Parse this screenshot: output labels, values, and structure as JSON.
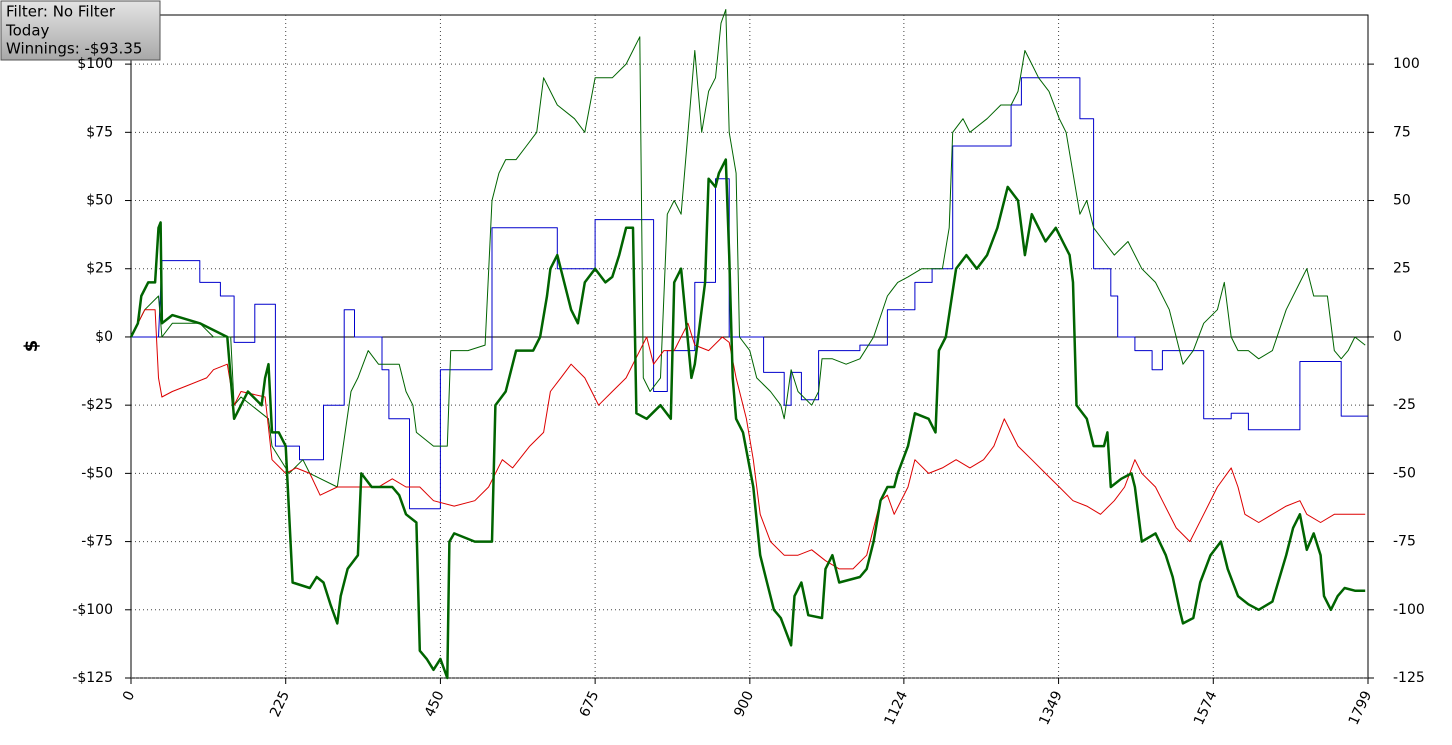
{
  "info": {
    "filter": "Filter: No Filter",
    "period": "Today",
    "winnings": "Winnings: -$93.35"
  },
  "chart_data": {
    "type": "line",
    "ylabel": "$",
    "xlim": [
      0,
      1799
    ],
    "xticks": [
      0,
      225,
      450,
      675,
      900,
      1124,
      1349,
      1574,
      1799
    ],
    "ylim": [
      -125,
      118
    ],
    "yticks": [
      {
        "value": 100,
        "label": "$100"
      },
      {
        "value": 75,
        "label": "$75"
      },
      {
        "value": 50,
        "label": "$50"
      },
      {
        "value": 25,
        "label": "$25"
      },
      {
        "value": 0,
        "label": "$0"
      },
      {
        "value": -25,
        "label": "-$25"
      },
      {
        "value": -50,
        "label": "-$50"
      },
      {
        "value": -75,
        "label": "-$75"
      },
      {
        "value": -100,
        "label": "-$100"
      },
      {
        "value": -125,
        "label": "-$125"
      }
    ],
    "y2lim": [
      -125,
      118
    ],
    "y2ticks": [
      100,
      75,
      50,
      25,
      0,
      -25,
      -50,
      -75,
      -100,
      -125
    ],
    "grid": true,
    "series": [
      {
        "color": "#0000cc",
        "width": 1,
        "x": [
          0,
          40,
          45,
          100,
          100,
          130,
          130,
          150,
          150,
          180,
          180,
          210,
          210,
          245,
          245,
          280,
          280,
          310,
          310,
          325,
          325,
          365,
          365,
          375,
          375,
          405,
          405,
          450,
          450,
          525,
          525,
          620,
          620,
          675,
          675,
          760,
          760,
          780,
          780,
          820,
          820,
          850,
          850,
          870,
          870,
          920,
          920,
          950,
          950,
          960,
          960,
          975,
          975,
          1000,
          1000,
          1060,
          1060,
          1100,
          1100,
          1140,
          1140,
          1165,
          1165,
          1195,
          1195,
          1280,
          1280,
          1295,
          1295,
          1380,
          1380,
          1400,
          1400,
          1425,
          1425,
          1435,
          1435,
          1460,
          1460,
          1485,
          1485,
          1500,
          1500,
          1560,
          1560,
          1600,
          1600,
          1625,
          1625,
          1700,
          1700,
          1760,
          1760,
          1799
        ],
        "values": [
          0,
          0,
          28,
          28,
          20,
          20,
          15,
          15,
          -2,
          -2,
          12,
          12,
          -40,
          -40,
          -45,
          -45,
          -25,
          -25,
          10,
          10,
          0,
          0,
          -12,
          -12,
          -30,
          -30,
          -63,
          -63,
          -12,
          -12,
          40,
          40,
          25,
          25,
          43,
          43,
          -20,
          -20,
          -5,
          -5,
          20,
          20,
          58,
          58,
          0,
          0,
          -13,
          -13,
          -25,
          -25,
          -13,
          -13,
          -23,
          -23,
          -5,
          -5,
          -3,
          -3,
          10,
          10,
          20,
          20,
          25,
          25,
          70,
          70,
          85,
          85,
          95,
          95,
          80,
          80,
          25,
          25,
          15,
          15,
          0,
          0,
          -5,
          -5,
          -12,
          -12,
          -5,
          -5,
          -30,
          -30,
          -28,
          -28,
          -34,
          -34,
          -9,
          -9,
          -29,
          -29
        ]
      },
      {
        "color": "#006400",
        "width": 1,
        "x": [
          0,
          20,
          40,
          45,
          60,
          100,
          120,
          145,
          150,
          160,
          200,
          205,
          230,
          250,
          260,
          300,
          320,
          330,
          345,
          360,
          390,
          400,
          410,
          415,
          440,
          460,
          465,
          490,
          515,
          525,
          535,
          545,
          560,
          575,
          590,
          600,
          620,
          645,
          660,
          675,
          700,
          720,
          740,
          745,
          755,
          770,
          780,
          790,
          800,
          810,
          820,
          830,
          840,
          850,
          858,
          865,
          870,
          880,
          885,
          900,
          910,
          930,
          945,
          950,
          960,
          970,
          990,
          1000,
          1005,
          1020,
          1040,
          1060,
          1080,
          1100,
          1115,
          1130,
          1150,
          1170,
          1180,
          1190,
          1195,
          1210,
          1220,
          1245,
          1265,
          1280,
          1290,
          1300,
          1310,
          1320,
          1335,
          1350,
          1360,
          1370,
          1380,
          1390,
          1400,
          1415,
          1430,
          1450,
          1470,
          1490,
          1510,
          1520,
          1530,
          1545,
          1560,
          1580,
          1590,
          1600,
          1610,
          1625,
          1640,
          1660,
          1680,
          1700,
          1710,
          1720,
          1740,
          1750,
          1760,
          1770,
          1780,
          1795
        ],
        "values": [
          0,
          10,
          15,
          0,
          5,
          5,
          0,
          0,
          -25,
          -22,
          -30,
          -40,
          -50,
          -45,
          -50,
          -55,
          -20,
          -15,
          -5,
          -10,
          -10,
          -20,
          -25,
          -35,
          -40,
          -40,
          -5,
          -5,
          -3,
          50,
          60,
          65,
          65,
          70,
          75,
          95,
          85,
          80,
          75,
          95,
          95,
          100,
          110,
          -15,
          -20,
          -15,
          45,
          50,
          45,
          75,
          105,
          75,
          90,
          95,
          115,
          120,
          75,
          60,
          0,
          -5,
          -15,
          -20,
          -25,
          -30,
          -12,
          -20,
          -25,
          -20,
          -8,
          -8,
          -10,
          -8,
          0,
          15,
          20,
          22,
          25,
          25,
          25,
          40,
          75,
          80,
          75,
          80,
          85,
          85,
          90,
          105,
          100,
          95,
          90,
          80,
          75,
          60,
          45,
          50,
          40,
          35,
          30,
          35,
          25,
          20,
          10,
          0,
          -10,
          -5,
          5,
          10,
          20,
          0,
          -5,
          -5,
          -8,
          -5,
          10,
          20,
          25,
          15,
          15,
          -5,
          -8,
          -5,
          0,
          -3
        ]
      },
      {
        "color": "#dd0000",
        "width": 1,
        "x": [
          0,
          20,
          35,
          40,
          45,
          60,
          80,
          110,
          120,
          140,
          150,
          160,
          195,
          205,
          225,
          240,
          260,
          275,
          300,
          330,
          360,
          380,
          400,
          420,
          440,
          470,
          500,
          520,
          540,
          555,
          580,
          600,
          610,
          625,
          640,
          660,
          670,
          680,
          700,
          720,
          740,
          750,
          760,
          775,
          790,
          810,
          820,
          840,
          860,
          870,
          880,
          895,
          905,
          915,
          930,
          950,
          970,
          990,
          1010,
          1030,
          1050,
          1070,
          1080,
          1090,
          1100,
          1110,
          1130,
          1140,
          1160,
          1180,
          1200,
          1220,
          1240,
          1255,
          1270,
          1280,
          1290,
          1310,
          1330,
          1350,
          1370,
          1390,
          1410,
          1430,
          1445,
          1460,
          1470,
          1490,
          1500,
          1520,
          1540,
          1560,
          1580,
          1600,
          1610,
          1620,
          1640,
          1660,
          1680,
          1700,
          1710,
          1730,
          1750,
          1770,
          1795
        ],
        "values": [
          0,
          10,
          10,
          -15,
          -22,
          -20,
          -18,
          -15,
          -12,
          -10,
          -25,
          -20,
          -22,
          -45,
          -50,
          -48,
          -50,
          -58,
          -55,
          -55,
          -55,
          -52,
          -55,
          -55,
          -60,
          -62,
          -60,
          -55,
          -45,
          -48,
          -40,
          -35,
          -20,
          -15,
          -10,
          -15,
          -20,
          -25,
          -20,
          -15,
          -5,
          0,
          -10,
          -5,
          -5,
          5,
          -3,
          -5,
          0,
          -2,
          -15,
          -30,
          -45,
          -65,
          -75,
          -80,
          -80,
          -78,
          -82,
          -85,
          -85,
          -80,
          -70,
          -60,
          -58,
          -65,
          -55,
          -45,
          -50,
          -48,
          -45,
          -48,
          -45,
          -40,
          -30,
          -35,
          -40,
          -45,
          -50,
          -55,
          -60,
          -62,
          -65,
          -60,
          -55,
          -45,
          -50,
          -55,
          -60,
          -70,
          -75,
          -65,
          -55,
          -48,
          -55,
          -65,
          -68,
          -65,
          -62,
          -60,
          -65,
          -68,
          -65,
          -65,
          -65
        ]
      },
      {
        "color": "#006400",
        "width": 2.5,
        "x": [
          0,
          10,
          15,
          25,
          35,
          40,
          43,
          45,
          60,
          100,
          140,
          145,
          150,
          160,
          170,
          190,
          195,
          200,
          205,
          215,
          225,
          235,
          260,
          270,
          280,
          290,
          300,
          305,
          315,
          330,
          335,
          350,
          380,
          390,
          400,
          415,
          420,
          430,
          440,
          450,
          460,
          463,
          470,
          500,
          525,
          530,
          545,
          560,
          585,
          595,
          605,
          610,
          620,
          640,
          650,
          660,
          675,
          690,
          700,
          710,
          720,
          730,
          735,
          750,
          770,
          785,
          790,
          800,
          815,
          820,
          835,
          840,
          850,
          855,
          865,
          870,
          875,
          880,
          890,
          905,
          915,
          925,
          935,
          945,
          960,
          965,
          975,
          985,
          1005,
          1010,
          1020,
          1030,
          1060,
          1070,
          1080,
          1090,
          1100,
          1110,
          1115,
          1130,
          1140,
          1160,
          1170,
          1175,
          1185,
          1200,
          1215,
          1230,
          1245,
          1260,
          1275,
          1290,
          1300,
          1310,
          1330,
          1345,
          1355,
          1365,
          1370,
          1375,
          1390,
          1400,
          1415,
          1420,
          1425,
          1440,
          1455,
          1460,
          1470,
          1490,
          1505,
          1515,
          1525,
          1530,
          1545,
          1555,
          1570,
          1585,
          1595,
          1610,
          1625,
          1640,
          1660,
          1680,
          1690,
          1700,
          1710,
          1720,
          1730,
          1735,
          1745,
          1755,
          1765,
          1780,
          1795
        ],
        "values": [
          0,
          5,
          15,
          20,
          20,
          40,
          42,
          5,
          8,
          5,
          0,
          -15,
          -30,
          -25,
          -20,
          -25,
          -15,
          -10,
          -35,
          -35,
          -40,
          -90,
          -92,
          -88,
          -90,
          -98,
          -105,
          -95,
          -85,
          -80,
          -50,
          -55,
          -55,
          -58,
          -65,
          -68,
          -115,
          -118,
          -122,
          -118,
          -125,
          -75,
          -72,
          -75,
          -75,
          -25,
          -20,
          -5,
          -5,
          0,
          15,
          25,
          30,
          10,
          5,
          20,
          25,
          20,
          22,
          30,
          40,
          40,
          -28,
          -30,
          -25,
          -30,
          20,
          25,
          -15,
          -10,
          20,
          58,
          55,
          60,
          65,
          30,
          -15,
          -30,
          -35,
          -55,
          -80,
          -90,
          -100,
          -103,
          -113,
          -95,
          -90,
          -102,
          -103,
          -85,
          -80,
          -90,
          -88,
          -85,
          -75,
          -60,
          -55,
          -55,
          -50,
          -40,
          -28,
          -30,
          -35,
          -5,
          0,
          25,
          30,
          25,
          30,
          40,
          55,
          50,
          30,
          45,
          35,
          40,
          35,
          30,
          20,
          -25,
          -30,
          -40,
          -40,
          -35,
          -55,
          -52,
          -50,
          -55,
          -75,
          -72,
          -80,
          -88,
          -100,
          -105,
          -103,
          -90,
          -80,
          -75,
          -85,
          -95,
          -98,
          -100,
          -97,
          -80,
          -70,
          -65,
          -78,
          -72,
          -80,
          -95,
          -100,
          -95,
          -92,
          -93,
          -93
        ]
      }
    ]
  }
}
